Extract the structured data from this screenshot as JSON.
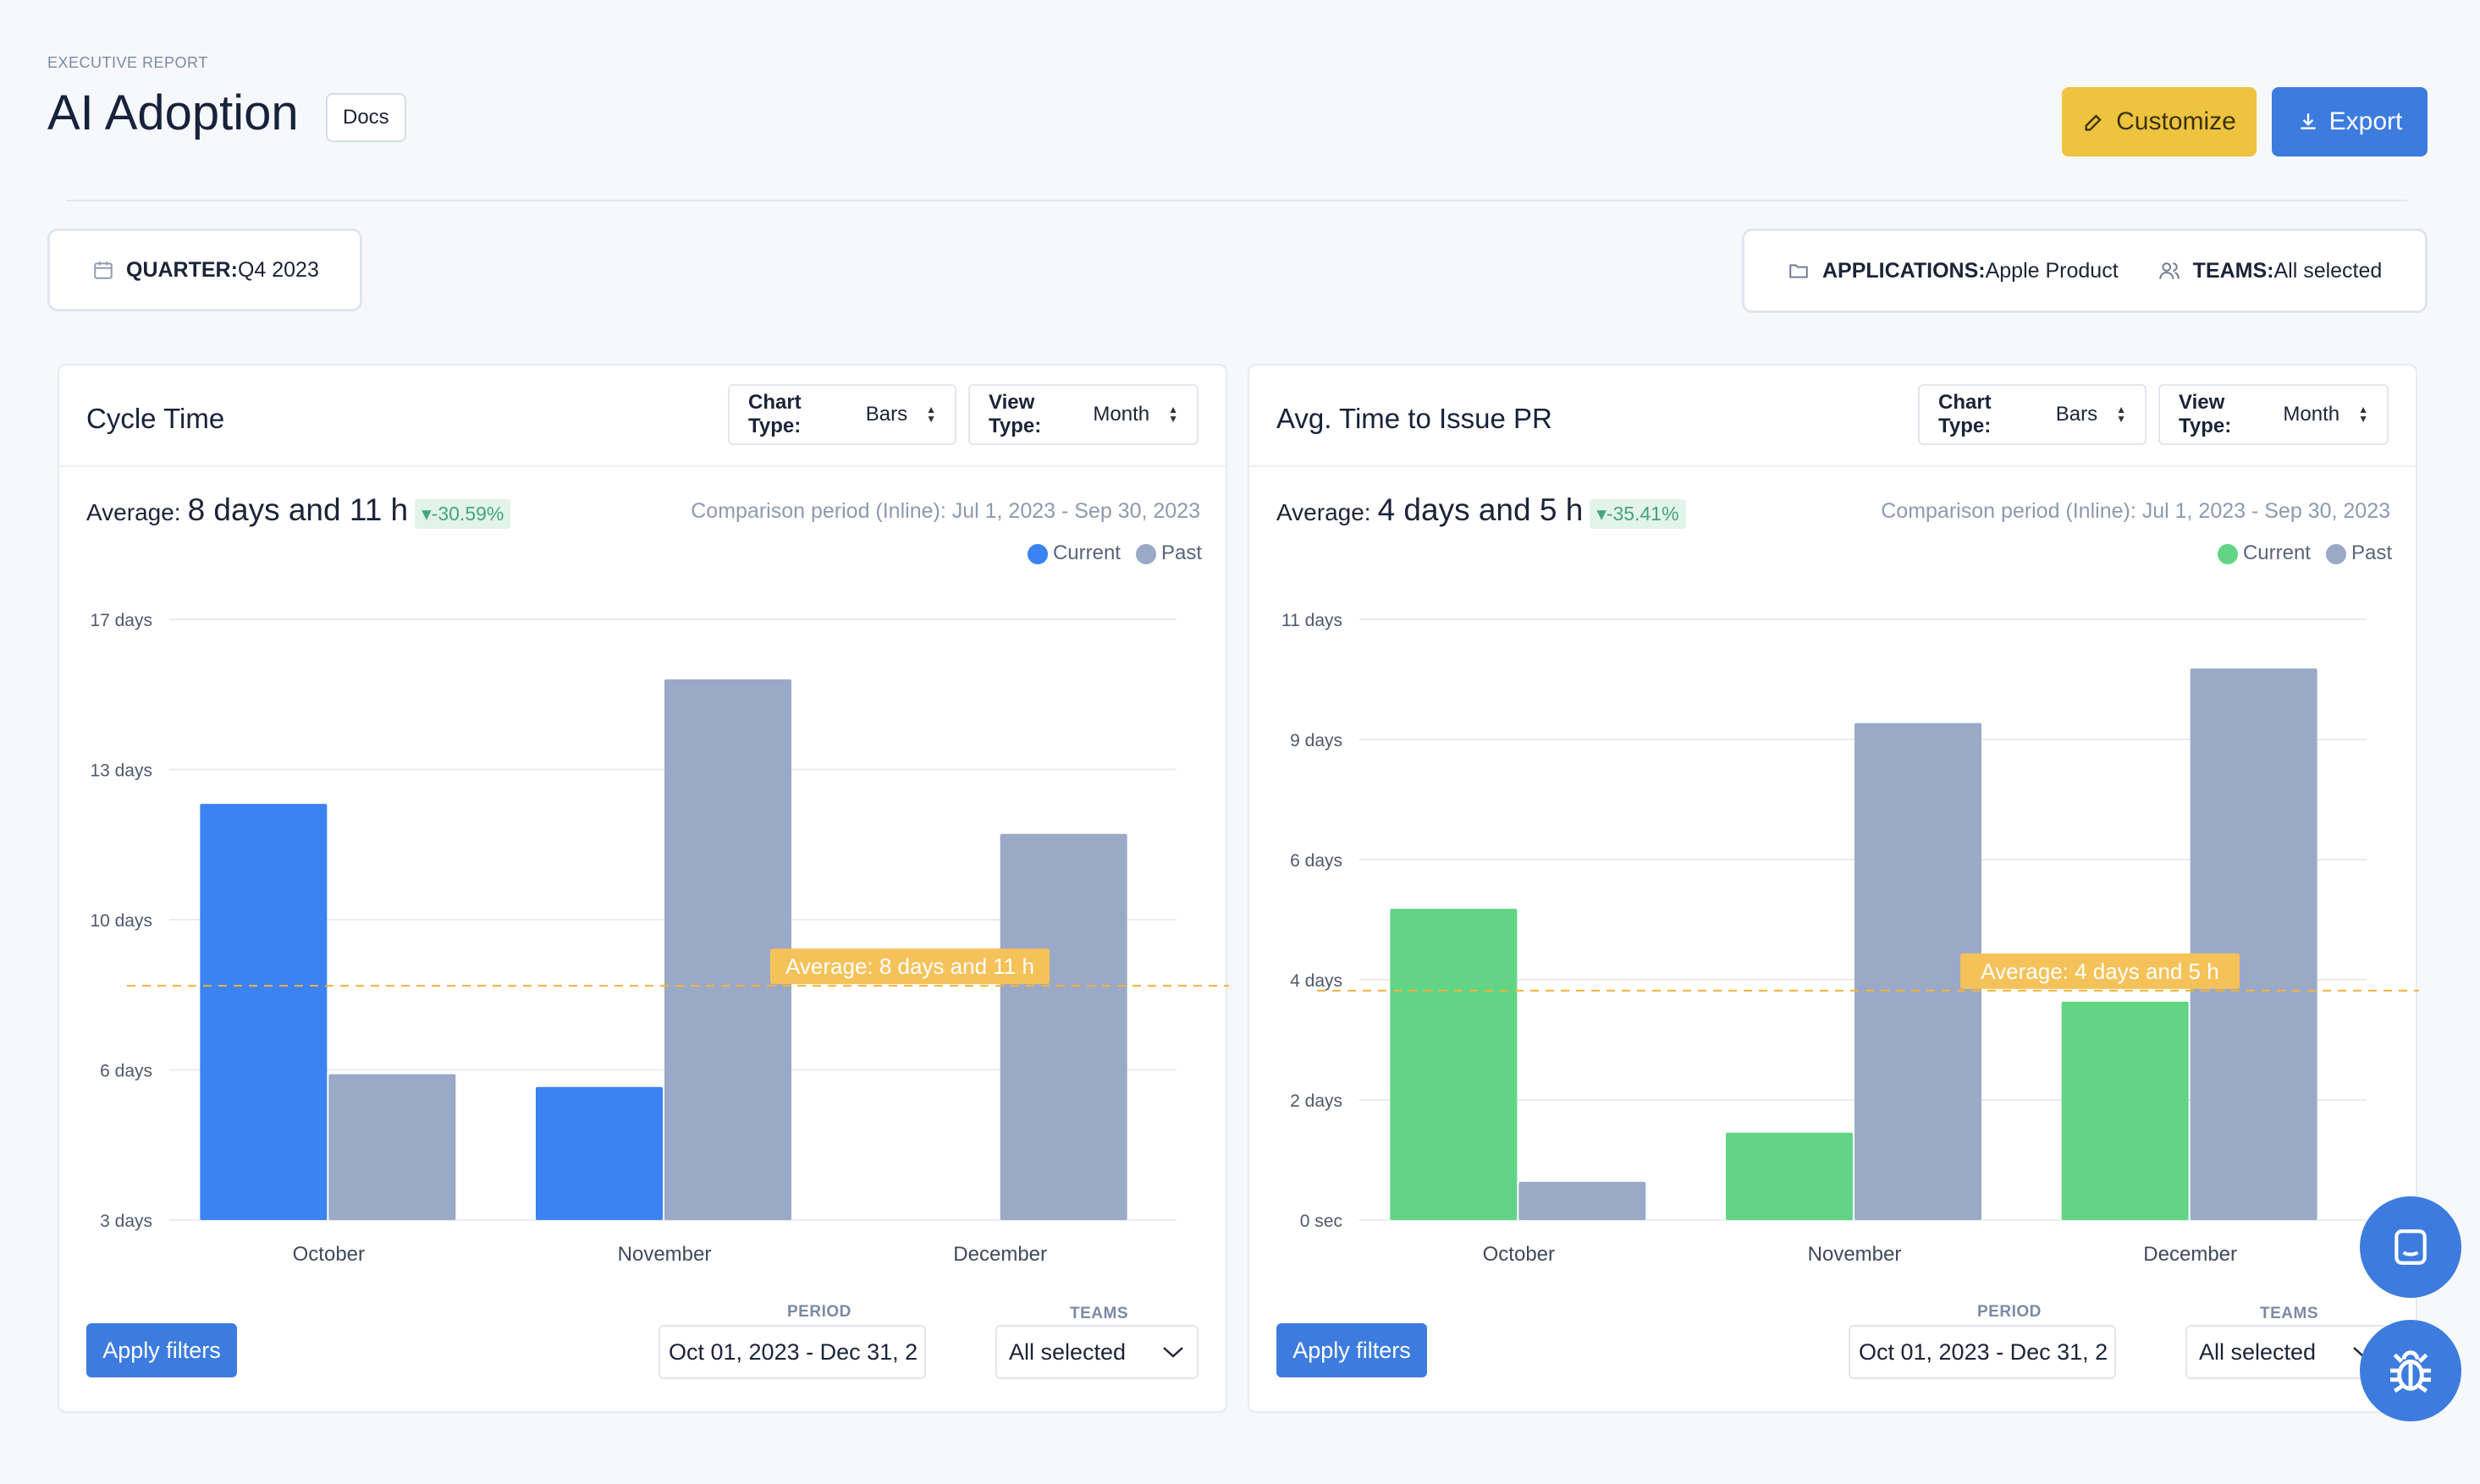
{
  "header": {
    "eyebrow": "EXECUTIVE REPORT",
    "title": "AI Adoption",
    "docs_label": "Docs",
    "customize_label": "Customize",
    "export_label": "Export"
  },
  "filters": {
    "quarter_label": "QUARTER:",
    "quarter_value": "Q4 2023",
    "applications_label": "APPLICATIONS:",
    "applications_value": "Apple Product",
    "teams_label": "TEAMS:",
    "teams_value": "All selected"
  },
  "colors": {
    "accent_blue": "#3d7cde",
    "accent_yellow": "#edc33f",
    "current_blue": "#3b82f2",
    "current_green": "#62d486",
    "past_gray": "#9aa9c6",
    "avg_line": "#f2b23a"
  },
  "cards": [
    {
      "title": "Cycle Time",
      "chart_type_label": "Chart Type:",
      "chart_type_value": "Bars",
      "view_type_label": "View Type:",
      "view_type_value": "Month",
      "average_prefix": "Average:",
      "average_value": "8 days and 11 h",
      "delta": "▾-30.59%",
      "comparison": "Comparison period (Inline): Jul 1, 2023 - Sep 30, 2023",
      "legend_current": "Current",
      "legend_past": "Past",
      "avg_badge": "Average: 8 days and 11 h",
      "apply_label": "Apply filters",
      "period_label": "PERIOD",
      "period_value": "Oct 01, 2023 - Dec 31, 2",
      "teams_label": "TEAMS",
      "teams_value": "All selected"
    },
    {
      "title": "Avg. Time to Issue PR",
      "chart_type_label": "Chart Type:",
      "chart_type_value": "Bars",
      "view_type_label": "View Type:",
      "view_type_value": "Month",
      "average_prefix": "Average:",
      "average_value": "4 days and 5 h",
      "delta": "▾-35.41%",
      "comparison": "Comparison period (Inline): Jul 1, 2023 - Sep 30, 2023",
      "legend_current": "Current",
      "legend_past": "Past",
      "avg_badge": "Average: 4 days and 5 h",
      "apply_label": "Apply filters",
      "period_label": "PERIOD",
      "period_value": "Oct 01, 2023 - Dec 31, 2",
      "teams_label": "TEAMS",
      "teams_value": "All selected"
    }
  ],
  "chart_data": [
    {
      "type": "bar",
      "categories": [
        "October",
        "November",
        "December"
      ],
      "y_tick_labels": [
        "3 days",
        "6 days",
        "10 days",
        "13 days",
        "17 days"
      ],
      "ylim_days": [
        3,
        17
      ],
      "series": [
        {
          "name": "Current",
          "values": [
            12.7,
            6.1,
            2.3
          ],
          "color": "#3b82f2"
        },
        {
          "name": "Past",
          "values": [
            6.4,
            15.6,
            12.0
          ],
          "color": "#9aa9c6"
        }
      ],
      "average_days": 8.46,
      "average_label": "Average: 8 days and 11 h",
      "grid": true,
      "legend": "top-right"
    },
    {
      "type": "bar",
      "categories": [
        "October",
        "November",
        "December"
      ],
      "y_tick_labels": [
        "0 sec",
        "2 days",
        "4 days",
        "6 days",
        "9 days",
        "11 days"
      ],
      "ylim_days": [
        0,
        11
      ],
      "series": [
        {
          "name": "Current",
          "values": [
            5.7,
            1.6,
            4.0
          ],
          "color": "#62d486"
        },
        {
          "name": "Past",
          "values": [
            0.7,
            9.1,
            10.1
          ],
          "color": "#9aa9c6"
        }
      ],
      "average_days": 4.2,
      "average_label": "Average: 4 days and 5 h",
      "grid": true,
      "legend": "top-right"
    }
  ]
}
